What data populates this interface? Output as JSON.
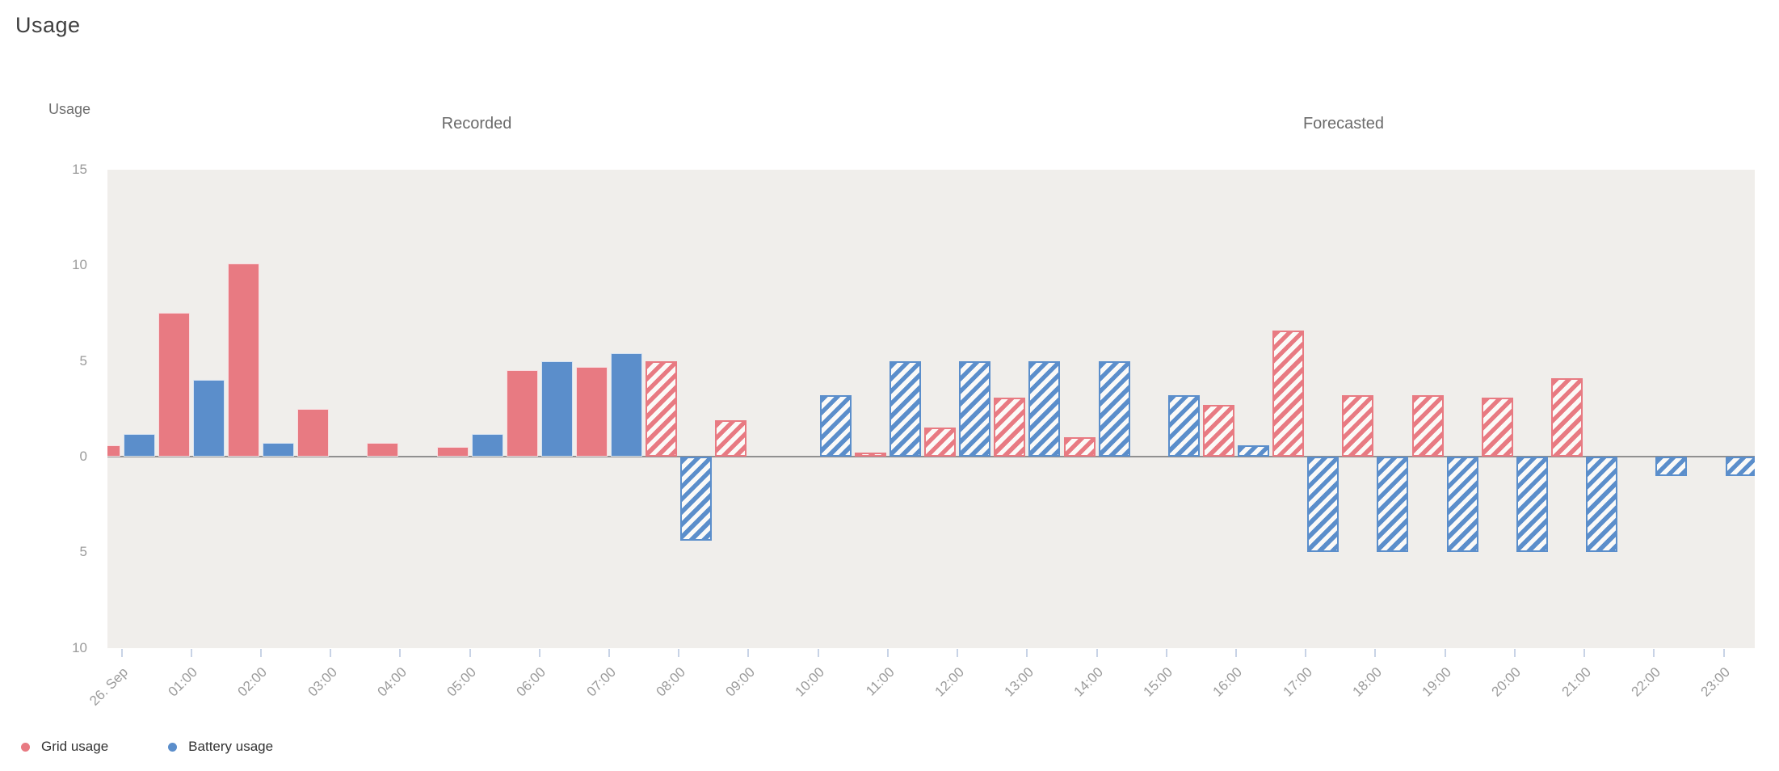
{
  "page_title": "Usage",
  "y_axis_title": "Usage",
  "section_labels": [
    {
      "label": "Recorded"
    },
    {
      "label": "Forecasted"
    }
  ],
  "legend": [
    {
      "name": "Grid usage",
      "color": "#e87a82"
    },
    {
      "name": "Battery usage",
      "color": "#5b8ecb"
    }
  ],
  "colors": {
    "grid_usage": "#e87a82",
    "battery_usage": "#5b8ecb",
    "plot_background": "#f0eeeb",
    "zero_axis_line": "#909090",
    "hatch_background": "#fbfaf8",
    "tick_mark": "#c8d3e6"
  },
  "chart_data": {
    "type": "bar",
    "title": "Usage",
    "y_axis_title": "Usage",
    "categories": [
      "26. Sep",
      "01:00",
      "02:00",
      "03:00",
      "04:00",
      "05:00",
      "06:00",
      "07:00",
      "08:00",
      "09:00",
      "10:00",
      "11:00",
      "12:00",
      "13:00",
      "14:00",
      "15:00",
      "16:00",
      "17:00",
      "18:00",
      "19:00",
      "20:00",
      "21:00",
      "22:00",
      "23:00"
    ],
    "series": [
      {
        "name": "Grid usage",
        "color": "#e87a82",
        "values": [
          0.6,
          7.5,
          10.1,
          2.5,
          0.7,
          0.5,
          4.5,
          4.7,
          5.0,
          1.9,
          0,
          0.2,
          1.5,
          3.1,
          1.0,
          0,
          2.7,
          6.6,
          3.2,
          3.2,
          3.1,
          4.1,
          0,
          0
        ]
      },
      {
        "name": "Battery usage",
        "color": "#5b8ecb",
        "values": [
          1.2,
          4.0,
          0.7,
          0,
          0,
          1.2,
          5.0,
          5.4,
          -4.4,
          0,
          3.2,
          5.0,
          5.0,
          5.0,
          5.0,
          3.2,
          0.6,
          -5.0,
          -5.0,
          -5.0,
          -5.0,
          -5.0,
          -1.0,
          -1.0
        ]
      }
    ],
    "forecast_start_index": 8,
    "recorded_section_label": "Recorded",
    "forecasted_section_label": "Forecasted",
    "ylim": [
      -10,
      15
    ],
    "y_ticks": [
      15,
      10,
      5,
      0,
      -5,
      -10
    ],
    "y_tick_labels": [
      "15",
      "10",
      "5",
      "0",
      "5",
      "10"
    ],
    "grid": "off",
    "legend_position": "bottom-left",
    "hatched_forecast": true
  }
}
